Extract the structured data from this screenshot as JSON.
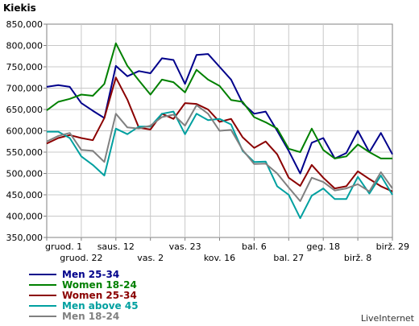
{
  "chart_data": {
    "type": "line",
    "title": "",
    "ylabel": "Kiekis",
    "xlabel": "",
    "ylim": [
      350000,
      850000
    ],
    "yticks": [
      "850,000",
      "800,000",
      "750,000",
      "700,000",
      "650,000",
      "600,000",
      "550,000",
      "500,000",
      "450,000",
      "400,000",
      "350,000"
    ],
    "x_tick_labels": [
      "gruod. 1",
      "gruod. 22",
      "saus. 12",
      "vas. 2",
      "vas. 23",
      "kov. 16",
      "bal. 6",
      "bal. 27",
      "geg. 18",
      "birž. 8",
      "birž. 29"
    ],
    "grid": true,
    "legend_position": "bottom-left",
    "series": [
      {
        "name": "Men 25-34",
        "color": "#00008b",
        "values": [
          703000,
          707000,
          703000,
          665000,
          647000,
          630000,
          752000,
          728000,
          740000,
          735000,
          770000,
          766000,
          710000,
          778000,
          780000,
          750000,
          720000,
          665000,
          640000,
          645000,
          600000,
          553000,
          500000,
          572000,
          583000,
          535000,
          548000,
          600000,
          550000,
          595000,
          545000
        ]
      },
      {
        "name": "Women 18-24",
        "color": "#008000",
        "values": [
          648000,
          668000,
          675000,
          685000,
          682000,
          710000,
          805000,
          752000,
          718000,
          685000,
          720000,
          714000,
          690000,
          743000,
          720000,
          705000,
          672000,
          668000,
          632000,
          620000,
          605000,
          558000,
          550000,
          605000,
          555000,
          535000,
          540000,
          568000,
          550000,
          535000,
          535000
        ]
      },
      {
        "name": "Women 25-34",
        "color": "#8b0000",
        "values": [
          570000,
          583000,
          590000,
          583000,
          578000,
          630000,
          725000,
          673000,
          607000,
          603000,
          640000,
          628000,
          665000,
          663000,
          650000,
          621000,
          628000,
          585000,
          560000,
          575000,
          545000,
          490000,
          471000,
          520000,
          490000,
          465000,
          470000,
          505000,
          487000,
          470000,
          458000
        ]
      },
      {
        "name": "Men above 45",
        "color": "#00a0a0",
        "values": [
          598000,
          598000,
          583000,
          540000,
          520000,
          495000,
          605000,
          592000,
          610000,
          610000,
          640000,
          645000,
          592000,
          640000,
          625000,
          628000,
          615000,
          553000,
          527000,
          528000,
          470000,
          450000,
          395000,
          448000,
          465000,
          440000,
          440000,
          492000,
          453000,
          495000,
          450000
        ]
      },
      {
        "name": "Men 18-24",
        "color": "#808080",
        "values": [
          575000,
          588000,
          595000,
          555000,
          553000,
          527000,
          640000,
          608000,
          605000,
          612000,
          632000,
          638000,
          612000,
          660000,
          640000,
          600000,
          602000,
          555000,
          522000,
          523000,
          500000,
          467000,
          435000,
          490000,
          480000,
          460000,
          465000,
          475000,
          458000,
          503000,
          465000
        ]
      }
    ]
  },
  "branding": "LiveInternet"
}
